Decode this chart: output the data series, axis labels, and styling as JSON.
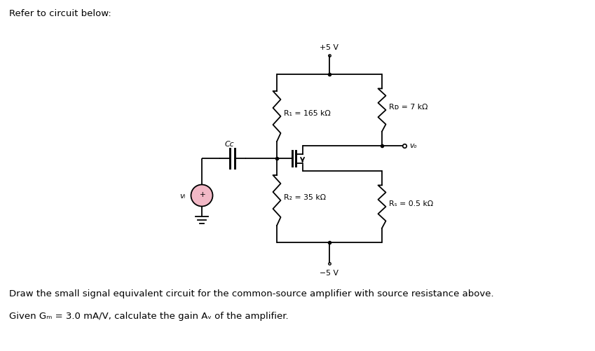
{
  "title": "Refer to circuit below:",
  "bottom_text_line1": "Draw the small signal equivalent circuit for the common-source amplifier with source resistance above.",
  "bottom_text_line2": "Given Gₘ = 3.0 mA/V, calculate the gain Aᵥ of the amplifier.",
  "labels": {
    "plus5v": "+5 V",
    "minus5v": "−5 V",
    "R1": "R₁ = 165 kΩ",
    "R2": "R₂ = 35 kΩ",
    "RD": "Rᴅ = 7 kΩ",
    "RS": "Rₛ = 0.5 kΩ",
    "Cc": "Cᴄ",
    "vi": "vᵢ",
    "vo": "vₒ"
  },
  "bg_color": "#ffffff",
  "line_color": "#000000",
  "source_fill": "#f2b8c6",
  "text_color": "#000000",
  "lw": 1.3
}
